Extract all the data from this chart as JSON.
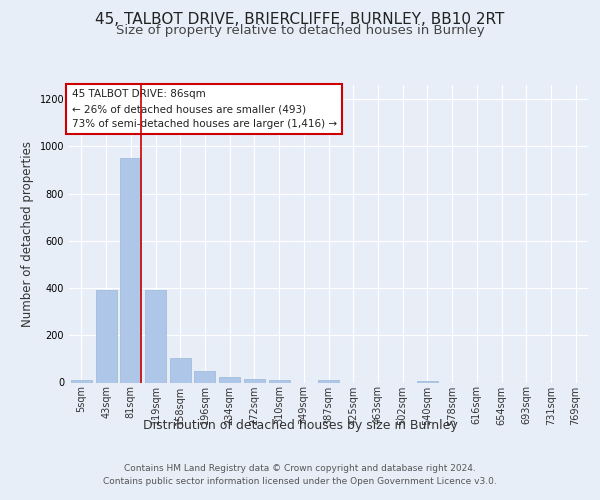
{
  "title_line1": "45, TALBOT DRIVE, BRIERCLIFFE, BURNLEY, BB10 2RT",
  "title_line2": "Size of property relative to detached houses in Burnley",
  "xlabel": "Distribution of detached houses by size in Burnley",
  "ylabel": "Number of detached properties",
  "footer_line1": "Contains HM Land Registry data © Crown copyright and database right 2024.",
  "footer_line2": "Contains public sector information licensed under the Open Government Licence v3.0.",
  "annotation_line1": "45 TALBOT DRIVE: 86sqm",
  "annotation_line2": "← 26% of detached houses are smaller (493)",
  "annotation_line3": "73% of semi-detached houses are larger (1,416) →",
  "bar_labels": [
    "5sqm",
    "43sqm",
    "81sqm",
    "119sqm",
    "158sqm",
    "196sqm",
    "234sqm",
    "272sqm",
    "310sqm",
    "349sqm",
    "387sqm",
    "425sqm",
    "463sqm",
    "502sqm",
    "540sqm",
    "578sqm",
    "616sqm",
    "654sqm",
    "693sqm",
    "731sqm",
    "769sqm"
  ],
  "bar_values": [
    10,
    393,
    950,
    390,
    105,
    50,
    25,
    15,
    10,
    0,
    12,
    0,
    0,
    0,
    8,
    0,
    0,
    0,
    0,
    0,
    0
  ],
  "bar_color": "#aec6e8",
  "bar_edge_color": "#9ab8d8",
  "marker_color": "#cc0000",
  "marker_bar_index": 2,
  "ylim": [
    0,
    1260
  ],
  "yticks": [
    0,
    200,
    400,
    600,
    800,
    1000,
    1200
  ],
  "bg_color": "#e8eef8",
  "plot_bg_color": "#e8eef8",
  "grid_color": "#ffffff",
  "annotation_box_edge_color": "#cc0000",
  "annotation_box_face_color": "#ffffff",
  "title1_fontsize": 11,
  "title2_fontsize": 9.5,
  "tick_fontsize": 7,
  "ylabel_fontsize": 8.5,
  "xlabel_fontsize": 9,
  "footer_fontsize": 6.5,
  "annotation_fontsize": 7.5
}
